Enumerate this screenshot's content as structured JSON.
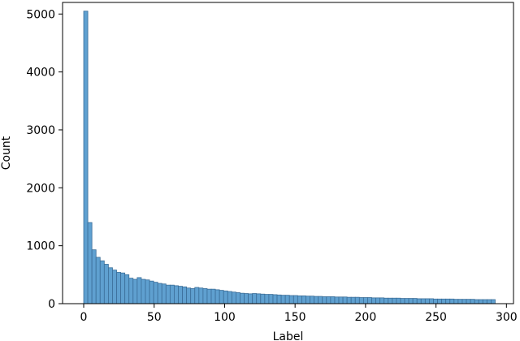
{
  "chart_data": {
    "type": "bar",
    "title": "",
    "xlabel": "Label",
    "ylabel": "Count",
    "xlim": [
      -15,
      305
    ],
    "ylim": [
      0,
      5200
    ],
    "xticks": [
      0,
      50,
      100,
      150,
      200,
      250,
      300
    ],
    "yticks": [
      0,
      1000,
      2000,
      3000,
      4000,
      5000
    ],
    "grid": false,
    "legend": "none",
    "bin_width": 2.92,
    "bin_start": 0,
    "counts": [
      5050,
      1400,
      930,
      800,
      740,
      680,
      620,
      580,
      540,
      530,
      500,
      440,
      420,
      450,
      420,
      410,
      390,
      370,
      350,
      340,
      320,
      320,
      310,
      300,
      290,
      270,
      260,
      280,
      270,
      260,
      250,
      250,
      240,
      230,
      220,
      210,
      200,
      190,
      180,
      175,
      170,
      175,
      170,
      165,
      160,
      160,
      155,
      150,
      145,
      145,
      140,
      140,
      135,
      135,
      130,
      130,
      125,
      125,
      120,
      120,
      120,
      115,
      115,
      115,
      110,
      110,
      110,
      105,
      105,
      105,
      100,
      100,
      100,
      95,
      95,
      95,
      95,
      90,
      90,
      90,
      90,
      85,
      85,
      85,
      85,
      80,
      80,
      80,
      80,
      80,
      75,
      75,
      75,
      75,
      75,
      70,
      70,
      70,
      70,
      70
    ],
    "bar_color": "#5fa0d0",
    "bar_edge_color": "#3b6e99",
    "axis_color": "#000000"
  }
}
